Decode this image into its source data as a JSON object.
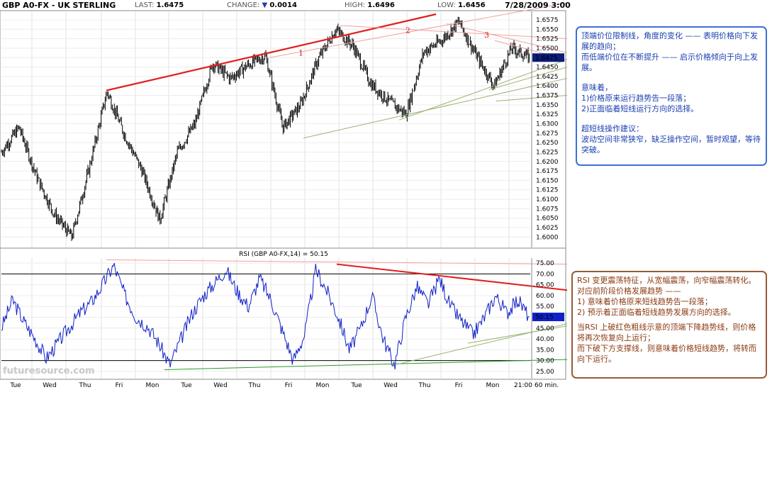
{
  "header": {
    "title": "GBP A0-FX - UK STERLING",
    "last_label": "LAST:",
    "last_value": "1.6475",
    "change_label": "CHANGE:",
    "change_value": "0.0014",
    "high_label": "HIGH:",
    "high_value": "1.6496",
    "low_label": "LOW:",
    "low_value": "1.6456",
    "datetime": "7/28/2009 3:00"
  },
  "price_panel": {
    "price_ticks": [
      "1.6575",
      "1.6550",
      "1.6525",
      "1.6500",
      "1.6475",
      "1.6450",
      "1.6425",
      "1.6400",
      "1.6375",
      "1.6350",
      "1.6325",
      "1.6300",
      "1.6275",
      "1.6250",
      "1.6225",
      "1.6200",
      "1.6175",
      "1.6150",
      "1.6125",
      "1.6100",
      "1.6075",
      "1.6050",
      "1.6025",
      "1.6000"
    ],
    "last_price_flag": "1.6475",
    "wave_labels": [
      "1",
      "2",
      "3"
    ]
  },
  "rsi_panel": {
    "title": "RSI (GBP A0-FX,14) = 50.15",
    "rsi_ticks": [
      "75.00",
      "70.00",
      "65.00",
      "60.00",
      "55.00",
      "50.00",
      "45.00",
      "40.00",
      "35.00",
      "30.00",
      "25.00"
    ],
    "current_flag": "50.15",
    "watermark": "futuresource.com"
  },
  "x_axis": {
    "labels": [
      "Tue",
      "Wed",
      "Thu",
      "Fri",
      "Mon",
      "Tue",
      "Wed",
      "Thu",
      "Fri",
      "Mon",
      "Tue",
      "Wed",
      "Thu",
      "Fri",
      "Mon",
      "21:00"
    ],
    "interval": "60 min."
  },
  "notes": {
    "top": [
      "顶端价位限制线，角度的变化 —— 表明价格向下发展的趋向；",
      "而低端价位在不断提升 —— 启示价格倾向于向上发展。",
      "意味着，",
      "1)价格原来运行趋势告一段落；",
      "2)正面临着短线运行方向的选择。",
      "超短线操作建议：",
      "波动空间非常狭窄，缺乏操作空间，暂时观望，等待突破。"
    ],
    "bottom": [
      "RSI 变更震荡特征，从宽幅震荡，向窄幅震荡转化。",
      "对应前阶段价格发展趋势 ——",
      "1) 意味着价格原来短线趋势告一段落；",
      "2) 预示着正面临着短线趋势发展方向的选择。",
      "当RSI 上破红色粗线示意的顶端下降趋势线，则价格将再次恢复向上运行；",
      "而下破下方支撑线，则意味着价格短线趋势，将转而向下运行。"
    ]
  },
  "chart_data": [
    {
      "type": "line",
      "subtype": "ohlc-bars",
      "title": "GBP A0-FX - UK STERLING",
      "interval": "60 min.",
      "ylim": [
        1.598,
        1.659
      ],
      "y_scale": "linear",
      "grid": true,
      "x_labels": [
        "Tue",
        "Wed",
        "Thu",
        "Fri",
        "Mon",
        "Tue",
        "Wed",
        "Thu",
        "Fri",
        "Mon",
        "Tue",
        "Wed",
        "Thu",
        "Fri",
        "Mon",
        "21:00"
      ],
      "key_points": [
        {
          "x": "Tue",
          "y": 1.6225
        },
        {
          "x": "Tue",
          "y": 1.629
        },
        {
          "x": "Wed",
          "y": 1.616
        },
        {
          "x": "Wed",
          "y": 1.606
        },
        {
          "x": "Thu",
          "y": 1.6
        },
        {
          "x": "Thu",
          "y": 1.6185
        },
        {
          "x": "Fri",
          "y": 1.6385
        },
        {
          "x": "Fri",
          "y": 1.627
        },
        {
          "x": "Mon",
          "y": 1.6175
        },
        {
          "x": "Mon",
          "y": 1.6045
        },
        {
          "x": "Tue",
          "y": 1.6225
        },
        {
          "x": "Tue",
          "y": 1.63
        },
        {
          "x": "Wed",
          "y": 1.646
        },
        {
          "x": "Wed",
          "y": 1.642
        },
        {
          "x": "Thu",
          "y": 1.6455
        },
        {
          "x": "Thu",
          "y": 1.648
        },
        {
          "x": "Fri",
          "y": 1.629
        },
        {
          "x": "Fri",
          "y": 1.635
        },
        {
          "x": "Mon",
          "y": 1.647
        },
        {
          "x": "Mon",
          "y": 1.655
        },
        {
          "x": "Tue",
          "y": 1.6505
        },
        {
          "x": "Tue",
          "y": 1.6405
        },
        {
          "x": "Wed",
          "y": 1.636
        },
        {
          "x": "Wed",
          "y": 1.6325
        },
        {
          "x": "Thu",
          "y": 1.649
        },
        {
          "x": "Thu",
          "y": 1.652
        },
        {
          "x": "Fri",
          "y": 1.657
        },
        {
          "x": "Fri",
          "y": 1.648
        },
        {
          "x": "Mon",
          "y": 1.64
        },
        {
          "x": "Mon",
          "y": 1.65
        },
        {
          "x": "21:00",
          "y": 1.6475
        }
      ],
      "last": 1.6475
    },
    {
      "type": "line",
      "title": "RSI (GBP A0-FX,14) = 50.15",
      "ylim": [
        23,
        77
      ],
      "reference_lines": [
        70,
        30
      ],
      "grid": true,
      "x_labels": [
        "Tue",
        "Wed",
        "Thu",
        "Fri",
        "Mon",
        "Tue",
        "Wed",
        "Thu",
        "Fri",
        "Mon",
        "Tue",
        "Wed",
        "Thu",
        "Fri",
        "Mon",
        "21:00"
      ],
      "values": [
        45,
        58,
        48,
        40,
        31,
        38,
        45,
        52,
        57,
        65,
        74,
        60,
        50,
        46,
        38,
        28,
        40,
        52,
        60,
        66,
        72,
        62,
        55,
        68,
        58,
        44,
        30,
        42,
        72,
        62,
        50,
        35,
        45,
        60,
        40,
        28,
        50,
        64,
        56,
        68,
        55,
        48,
        42,
        50,
        60,
        52,
        58,
        50.15
      ],
      "last": 50.15
    }
  ]
}
